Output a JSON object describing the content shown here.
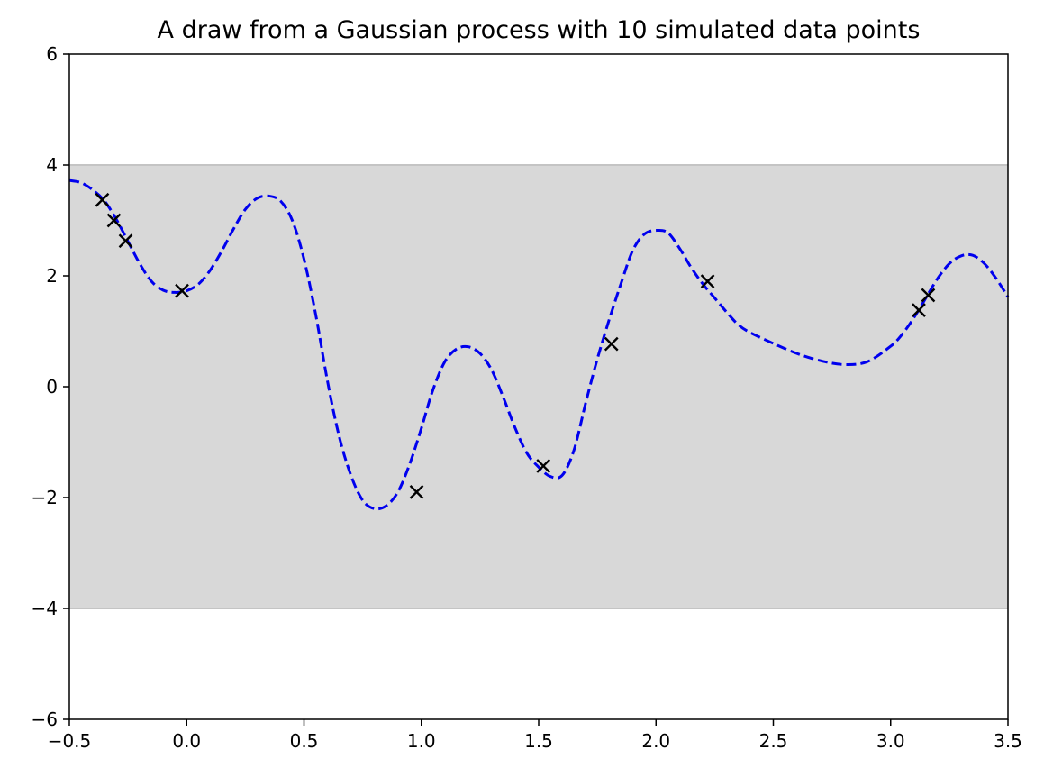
{
  "chart_data": {
    "type": "line",
    "title": "A draw from a Gaussian process with 10 simulated data points",
    "xlabel": "",
    "ylabel": "",
    "xlim": [
      -0.5,
      3.5
    ],
    "ylim": [
      -6,
      6
    ],
    "x_ticks": [
      -0.5,
      0.0,
      0.5,
      1.0,
      1.5,
      2.0,
      2.5,
      3.0,
      3.5
    ],
    "x_tick_labels": [
      "−0.5",
      "0.0",
      "0.5",
      "1.0",
      "1.5",
      "2.0",
      "2.5",
      "3.0",
      "3.5"
    ],
    "y_ticks": [
      -6,
      -4,
      -2,
      0,
      2,
      4,
      6
    ],
    "y_tick_labels": [
      "−6",
      "−4",
      "−2",
      "0",
      "2",
      "4",
      "6"
    ],
    "grid": false,
    "band": {
      "y_low": -4,
      "y_high": 4,
      "color": "#d8d8d8"
    },
    "series": [
      {
        "style": "dashed-line",
        "color": "#0000ee",
        "x": [
          -0.5,
          -0.45,
          -0.4,
          -0.35,
          -0.3,
          -0.25,
          -0.2,
          -0.15,
          -0.1,
          -0.05,
          0.0,
          0.05,
          0.1,
          0.15,
          0.2,
          0.25,
          0.3,
          0.35,
          0.4,
          0.45,
          0.5,
          0.55,
          0.6,
          0.65,
          0.7,
          0.75,
          0.8,
          0.85,
          0.9,
          0.95,
          1.0,
          1.05,
          1.1,
          1.15,
          1.2,
          1.25,
          1.3,
          1.35,
          1.4,
          1.45,
          1.5,
          1.55,
          1.6,
          1.65,
          1.7,
          1.75,
          1.8,
          1.85,
          1.9,
          1.95,
          2.0,
          2.05,
          2.1,
          2.15,
          2.2,
          2.25,
          2.3,
          2.35,
          2.4,
          2.5,
          2.6,
          2.7,
          2.8,
          2.9,
          3.0,
          3.05,
          3.1,
          3.15,
          3.2,
          3.25,
          3.3,
          3.35,
          3.4,
          3.45,
          3.5
        ],
        "y": [
          3.72,
          3.68,
          3.55,
          3.35,
          3.02,
          2.62,
          2.22,
          1.9,
          1.74,
          1.7,
          1.73,
          1.85,
          2.1,
          2.45,
          2.85,
          3.2,
          3.4,
          3.44,
          3.35,
          3.0,
          2.3,
          1.3,
          0.1,
          -0.9,
          -1.6,
          -2.05,
          -2.2,
          -2.15,
          -1.9,
          -1.4,
          -0.75,
          -0.05,
          0.45,
          0.68,
          0.72,
          0.6,
          0.3,
          -0.2,
          -0.75,
          -1.2,
          -1.45,
          -1.62,
          -1.6,
          -1.15,
          -0.3,
          0.5,
          1.2,
          1.85,
          2.45,
          2.75,
          2.82,
          2.78,
          2.5,
          2.15,
          1.85,
          1.6,
          1.35,
          1.12,
          0.98,
          0.78,
          0.6,
          0.47,
          0.4,
          0.45,
          0.73,
          0.95,
          1.25,
          1.6,
          1.95,
          2.22,
          2.36,
          2.37,
          2.22,
          1.95,
          1.62
        ]
      },
      {
        "style": "x-markers",
        "color": "#000000",
        "x": [
          -0.36,
          -0.31,
          -0.26,
          -0.02,
          0.98,
          1.52,
          1.81,
          2.22,
          3.12,
          3.16
        ],
        "y": [
          3.37,
          3.0,
          2.63,
          1.73,
          -1.9,
          -1.43,
          0.77,
          1.9,
          1.38,
          1.65
        ]
      }
    ]
  }
}
